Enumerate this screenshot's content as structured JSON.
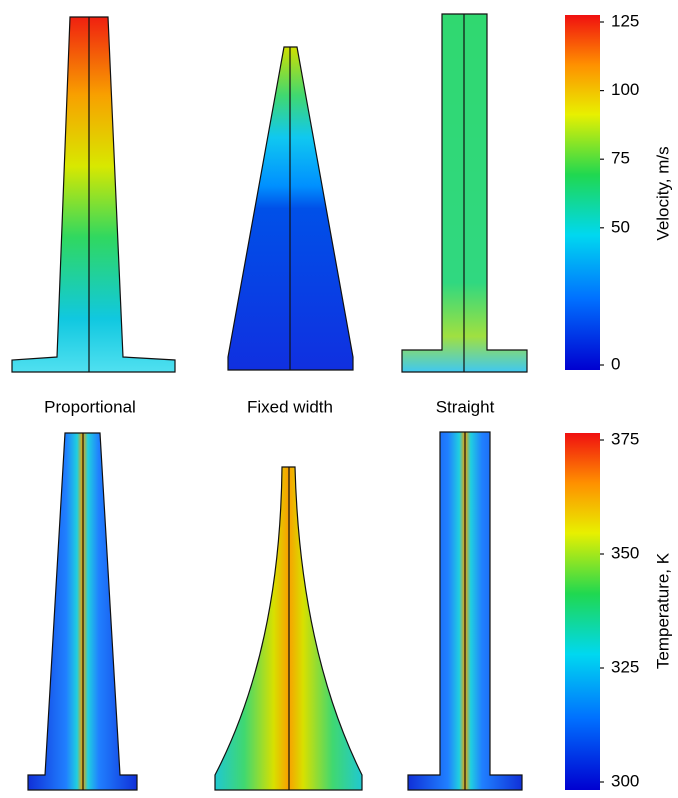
{
  "panels": [
    {
      "label": "Proportional"
    },
    {
      "label": "Fixed width"
    },
    {
      "label": "Straight"
    }
  ],
  "colorbars": [
    {
      "label": "Velocity, m/s",
      "lim": [
        0,
        125
      ],
      "ticks": [
        0,
        50,
        75,
        100,
        125
      ]
    },
    {
      "label": "Temperature, K",
      "lim": [
        300,
        375
      ],
      "ticks": [
        300,
        325,
        350,
        375
      ]
    }
  ]
}
